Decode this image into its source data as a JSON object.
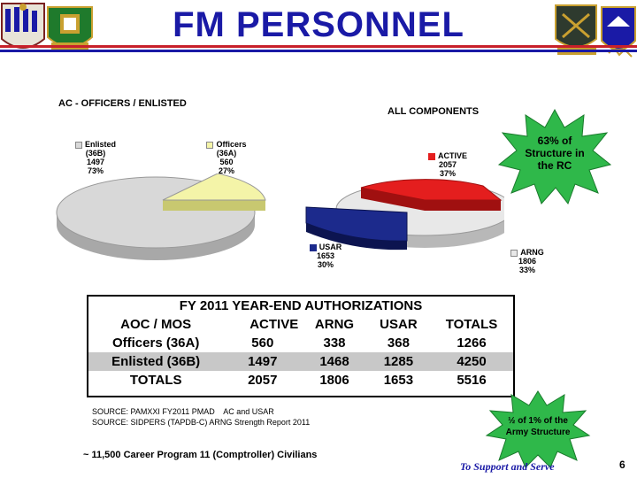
{
  "title": "FM PERSONNEL",
  "colors": {
    "title": "#1a1aa6",
    "active": "#e41e1e",
    "usar": "#1c2a8c",
    "arng": "#e8e8e8",
    "officers": "#f4f4a8",
    "enlisted": "#d8d8d8",
    "burst": "#2fb84a"
  },
  "ac_chart": {
    "heading": "AC - OFFICERS / ENLISTED",
    "enlisted": {
      "label": "Enlisted",
      "code": "(36B)",
      "count": "1497",
      "pct": "73%"
    },
    "officers": {
      "label": "Officers",
      "code": "(36A)",
      "count": "560",
      "pct": "27%"
    }
  },
  "all_chart": {
    "heading": "ALL COMPONENTS",
    "active": {
      "label": "ACTIVE",
      "count": "2057",
      "pct": "37%"
    },
    "usar": {
      "label": "USAR",
      "count": "1653",
      "pct": "30%"
    },
    "arng": {
      "label": "ARNG",
      "count": "1806",
      "pct": "33%"
    }
  },
  "burst_top": {
    "line1": "63% of",
    "line2": "Structure in",
    "line3": "the RC"
  },
  "burst_bottom": {
    "line1": "½ of 1% of the",
    "line2": "Army Structure"
  },
  "table": {
    "title": "FY 2011 YEAR-END AUTHORIZATIONS",
    "headers": [
      "AOC / MOS",
      "ACTIVE",
      "ARNG",
      "USAR",
      "TOTALS"
    ],
    "rows": [
      [
        "Officers (36A)",
        "560",
        "338",
        "368",
        "1266"
      ],
      [
        "Enlisted (36B)",
        "1497",
        "1468",
        "1285",
        "4250"
      ],
      [
        "TOTALS",
        "2057",
        "1806",
        "1653",
        "5516"
      ]
    ]
  },
  "sources": {
    "line1": "SOURCE: PAMXXI FY2011 PMAD    AC and USAR",
    "line2": "SOURCE: SIDPERS (TAPDB-C) ARNG Strength Report 2011"
  },
  "civilians": "~ 11,500 Career Program 11 (Comptroller) Civilians",
  "footer": {
    "motto": "To Support and Serve",
    "page": "6"
  }
}
